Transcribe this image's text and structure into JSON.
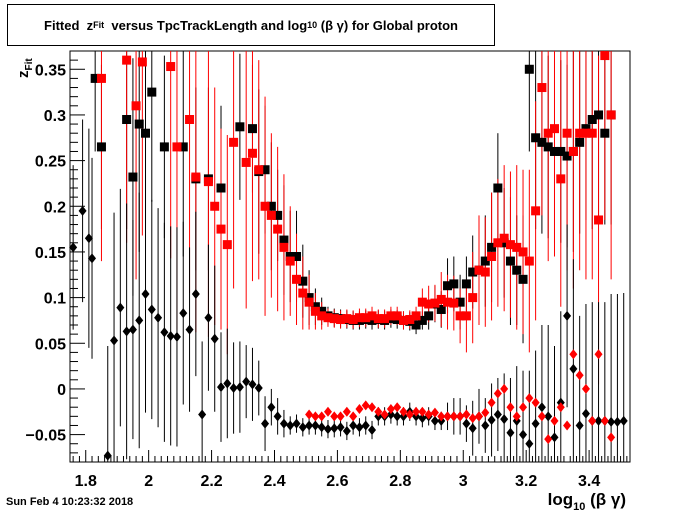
{
  "title": {
    "pre": "Fitted  z",
    "sub1": "Fit",
    "mid": "  versus TpcTrackLength and log",
    "sub2": "10",
    "post": " (β γ) for Global proton"
  },
  "timestamp": "Sun Feb  4 10:23:32 2018",
  "chart_data": {
    "type": "scatter",
    "title": "Fitted z_Fit versus TpcTrackLength and log10 (β γ) for Global proton",
    "xlabel": {
      "main": "log",
      "sub": "10",
      "post": " (β γ)"
    },
    "ylabel": {
      "main": "z",
      "sub": "Fit"
    },
    "xlim": [
      1.75,
      3.53
    ],
    "ylim": [
      -0.08,
      0.37
    ],
    "xticks": [
      1.8,
      2,
      2.2,
      2.4,
      2.6,
      2.8,
      3,
      3.2,
      3.4
    ],
    "xtick_labels": [
      "1.8",
      "2",
      "2.2",
      "2.4",
      "2.6",
      "2.8",
      "3",
      "3.2",
      "3.4"
    ],
    "yticks": [
      -0.05,
      0,
      0.05,
      0.1,
      0.15,
      0.2,
      0.25,
      0.3,
      0.35
    ],
    "ytick_labels": [
      "−0.05",
      "0",
      "0.05",
      "0.1",
      "0.15",
      "0.2",
      "0.25",
      "0.3",
      "0.35"
    ],
    "grid": false,
    "legend": "none",
    "series": [
      {
        "marker": "square",
        "color": "#000000",
        "x": [
          1.83,
          1.85,
          1.93,
          1.95,
          1.97,
          1.99,
          2.01,
          2.05,
          2.11,
          2.15,
          2.19,
          2.23,
          2.29,
          2.33,
          2.35,
          2.37,
          2.39,
          2.41,
          2.43,
          2.45,
          2.47,
          2.49,
          2.51,
          2.53,
          2.55,
          2.57,
          2.59,
          2.61,
          2.63,
          2.65,
          2.67,
          2.69,
          2.71,
          2.73,
          2.75,
          2.77,
          2.79,
          2.81,
          2.83,
          2.85,
          2.87,
          2.89,
          2.91,
          2.93,
          2.95,
          2.97,
          2.99,
          3.01,
          3.03,
          3.05,
          3.07,
          3.09,
          3.11,
          3.13,
          3.15,
          3.17,
          3.19,
          3.21,
          3.23,
          3.25,
          3.27,
          3.29,
          3.31,
          3.33,
          3.35,
          3.37,
          3.39,
          3.41,
          3.43,
          3.45,
          3.47
        ],
        "y": [
          0.34,
          0.265,
          0.295,
          0.232,
          0.29,
          0.28,
          0.325,
          0.265,
          0.265,
          0.23,
          0.23,
          0.22,
          0.287,
          0.285,
          0.238,
          0.24,
          0.2,
          0.19,
          0.163,
          0.145,
          0.145,
          0.118,
          0.1,
          0.09,
          0.085,
          0.08,
          0.078,
          0.077,
          0.076,
          0.075,
          0.075,
          0.076,
          0.075,
          0.076,
          0.075,
          0.077,
          0.076,
          0.075,
          0.074,
          0.07,
          0.075,
          0.08,
          0.093,
          0.087,
          0.113,
          0.115,
          0.095,
          0.115,
          0.128,
          0.13,
          0.14,
          0.155,
          0.22,
          0.16,
          0.14,
          0.13,
          0.12,
          0.35,
          0.275,
          0.27,
          0.265,
          0.26,
          0.26,
          0.255,
          0.26,
          0.27,
          0.285,
          0.295,
          0.3,
          0.28,
          0.3
        ],
        "err": [
          0.08,
          0.09,
          0.12,
          0.13,
          0.14,
          0.1,
          0.12,
          0.1,
          0.12,
          0.1,
          0.1,
          0.09,
          0.08,
          0.07,
          0.09,
          0.07,
          0.07,
          0.05,
          0.06,
          0.05,
          0.05,
          0.04,
          0.03,
          0.02,
          0.015,
          0.01,
          0.01,
          0.01,
          0.01,
          0.01,
          0.01,
          0.01,
          0.01,
          0.01,
          0.01,
          0.01,
          0.01,
          0.01,
          0.01,
          0.01,
          0.01,
          0.015,
          0.02,
          0.02,
          0.03,
          0.03,
          0.03,
          0.03,
          0.04,
          0.04,
          0.05,
          0.06,
          0.06,
          0.06,
          0.07,
          0.06,
          0.07,
          0.09,
          0.1,
          0.1,
          0.1,
          0.1,
          0.1,
          0.1,
          0.11,
          0.1,
          0.1,
          0.12,
          0.12,
          0.1,
          0.12
        ]
      },
      {
        "marker": "square",
        "color": "#ff0000",
        "x": [
          1.85,
          1.93,
          1.96,
          1.98,
          2.07,
          2.09,
          2.13,
          2.15,
          2.19,
          2.21,
          2.23,
          2.25,
          2.27,
          2.31,
          2.33,
          2.35,
          2.37,
          2.39,
          2.41,
          2.43,
          2.45,
          2.47,
          2.49,
          2.51,
          2.53,
          2.55,
          2.57,
          2.59,
          2.61,
          2.63,
          2.65,
          2.67,
          2.69,
          2.71,
          2.73,
          2.75,
          2.77,
          2.79,
          2.81,
          2.83,
          2.85,
          2.87,
          2.89,
          2.91,
          2.93,
          2.95,
          2.97,
          2.99,
          3.01,
          3.03,
          3.05,
          3.07,
          3.09,
          3.11,
          3.13,
          3.15,
          3.17,
          3.19,
          3.21,
          3.23,
          3.25,
          3.27,
          3.29,
          3.31,
          3.33,
          3.35,
          3.37,
          3.39,
          3.41,
          3.43,
          3.45,
          3.47
        ],
        "y": [
          0.34,
          0.36,
          0.31,
          0.358,
          0.353,
          0.265,
          0.295,
          0.232,
          0.227,
          0.2,
          0.175,
          0.158,
          0.27,
          0.248,
          0.258,
          0.24,
          0.2,
          0.19,
          0.175,
          0.155,
          0.14,
          0.12,
          0.105,
          0.095,
          0.085,
          0.08,
          0.078,
          0.077,
          0.076,
          0.077,
          0.076,
          0.078,
          0.078,
          0.08,
          0.077,
          0.077,
          0.08,
          0.08,
          0.075,
          0.076,
          0.08,
          0.095,
          0.093,
          0.094,
          0.098,
          0.095,
          0.094,
          0.08,
          0.08,
          0.1,
          0.13,
          0.128,
          0.145,
          0.16,
          0.165,
          0.158,
          0.155,
          0.15,
          0.14,
          0.195,
          0.33,
          0.28,
          0.285,
          0.23,
          0.28,
          0.26,
          0.28,
          0.28,
          0.28,
          0.185,
          0.365,
          0.3
        ],
        "err": [
          0.2,
          0.2,
          0.19,
          0.19,
          0.21,
          0.2,
          0.19,
          0.17,
          0.17,
          0.13,
          0.11,
          0.12,
          0.16,
          0.16,
          0.14,
          0.12,
          0.12,
          0.09,
          0.09,
          0.08,
          0.06,
          0.05,
          0.04,
          0.03,
          0.02,
          0.015,
          0.01,
          0.01,
          0.01,
          0.01,
          0.01,
          0.01,
          0.01,
          0.01,
          0.01,
          0.01,
          0.01,
          0.01,
          0.01,
          0.01,
          0.01,
          0.015,
          0.02,
          0.02,
          0.03,
          0.03,
          0.03,
          0.03,
          0.04,
          0.05,
          0.06,
          0.06,
          0.07,
          0.07,
          0.08,
          0.08,
          0.09,
          0.09,
          0.1,
          0.12,
          0.14,
          0.14,
          0.14,
          0.14,
          0.15,
          0.15,
          0.15,
          0.16,
          0.16,
          0.18,
          0.18,
          0.18
        ]
      },
      {
        "marker": "diamond",
        "color": "#000000",
        "x": [
          1.76,
          1.79,
          1.81,
          1.82,
          1.87,
          1.89,
          1.91,
          1.93,
          1.95,
          1.97,
          1.99,
          2.01,
          2.03,
          2.05,
          2.07,
          2.09,
          2.11,
          2.13,
          2.15,
          2.17,
          2.19,
          2.21,
          2.23,
          2.25,
          2.27,
          2.29,
          2.31,
          2.33,
          2.35,
          2.37,
          2.39,
          2.41,
          2.43,
          2.45,
          2.47,
          2.49,
          2.51,
          2.53,
          2.55,
          2.57,
          2.59,
          2.61,
          2.63,
          2.65,
          2.67,
          2.69,
          2.71,
          2.73,
          2.75,
          2.77,
          2.79,
          2.81,
          2.83,
          2.85,
          2.87,
          2.89,
          2.91,
          2.93,
          2.95,
          2.97,
          2.99,
          3.01,
          3.03,
          3.05,
          3.07,
          3.09,
          3.11,
          3.13,
          3.15,
          3.17,
          3.19,
          3.21,
          3.23,
          3.25,
          3.27,
          3.29,
          3.31,
          3.33,
          3.35,
          3.37,
          3.39,
          3.41,
          3.43,
          3.45,
          3.47,
          3.49,
          3.51
        ],
        "y": [
          0.155,
          0.195,
          0.165,
          0.143,
          -0.073,
          0.053,
          0.089,
          0.063,
          0.065,
          0.075,
          0.104,
          0.087,
          0.078,
          0.062,
          0.058,
          0.057,
          0.083,
          0.065,
          0.104,
          -0.028,
          0.078,
          0.055,
          0.002,
          0.006,
          0.001,
          0.002,
          0.008,
          0.005,
          0.001,
          -0.038,
          -0.02,
          -0.03,
          -0.038,
          -0.04,
          -0.038,
          -0.042,
          -0.04,
          -0.04,
          -0.042,
          -0.044,
          -0.043,
          -0.042,
          -0.046,
          -0.04,
          -0.042,
          -0.04,
          -0.045,
          -0.03,
          -0.03,
          -0.028,
          -0.03,
          -0.03,
          -0.025,
          -0.03,
          -0.032,
          -0.03,
          -0.035,
          -0.035,
          -0.03,
          -0.03,
          -0.03,
          -0.038,
          -0.043,
          -0.03,
          -0.04,
          -0.034,
          -0.028,
          -0.033,
          -0.048,
          -0.035,
          -0.05,
          -0.06,
          -0.038,
          -0.02,
          -0.03,
          -0.053,
          -0.015,
          0.08,
          0.022,
          -0.04,
          -0.027,
          -0.035,
          -0.035,
          -0.035,
          -0.036,
          -0.036,
          -0.035
        ],
        "err": [
          0.09,
          0.1,
          0.12,
          0.11,
          0.12,
          0.14,
          0.13,
          0.14,
          0.12,
          0.14,
          0.13,
          0.12,
          0.12,
          0.12,
          0.12,
          0.12,
          0.1,
          0.09,
          0.09,
          0.08,
          0.08,
          0.08,
          0.06,
          0.06,
          0.05,
          0.05,
          0.04,
          0.04,
          0.03,
          0.03,
          0.02,
          0.02,
          0.015,
          0.01,
          0.01,
          0.01,
          0.01,
          0.01,
          0.01,
          0.01,
          0.01,
          0.01,
          0.01,
          0.01,
          0.01,
          0.01,
          0.01,
          0.01,
          0.01,
          0.01,
          0.01,
          0.01,
          0.01,
          0.01,
          0.01,
          0.01,
          0.01,
          0.01,
          0.015,
          0.02,
          0.02,
          0.02,
          0.03,
          0.03,
          0.03,
          0.04,
          0.04,
          0.05,
          0.06,
          0.06,
          0.07,
          0.08,
          0.08,
          0.09,
          0.1,
          0.1,
          0.1,
          0.1,
          0.12,
          0.12,
          0.12,
          0.13,
          0.13,
          0.13,
          0.14,
          0.14,
          0.14
        ]
      },
      {
        "marker": "diamond",
        "color": "#ff0000",
        "x": [
          2.51,
          2.53,
          2.55,
          2.57,
          2.59,
          2.61,
          2.63,
          2.65,
          2.67,
          2.69,
          2.71,
          2.73,
          2.75,
          2.77,
          2.79,
          2.81,
          2.83,
          2.85,
          2.87,
          2.89,
          2.91,
          2.93,
          2.95,
          2.97,
          2.99,
          3.01,
          3.03,
          3.05,
          3.07,
          3.09,
          3.11,
          3.13,
          3.15,
          3.17,
          3.19,
          3.21,
          3.23,
          3.25,
          3.27,
          3.29,
          3.31,
          3.33,
          3.35,
          3.37,
          3.39,
          3.41,
          3.43,
          3.45,
          3.47
        ],
        "y": [
          -0.028,
          -0.03,
          -0.03,
          -0.025,
          -0.03,
          -0.03,
          -0.025,
          -0.03,
          -0.022,
          -0.018,
          -0.02,
          -0.025,
          -0.028,
          -0.022,
          -0.02,
          -0.025,
          -0.028,
          -0.025,
          -0.025,
          -0.028,
          -0.026,
          -0.03,
          -0.03,
          -0.03,
          -0.03,
          -0.028,
          -0.032,
          -0.03,
          -0.026,
          -0.015,
          -0.005,
          0.0,
          -0.02,
          -0.03,
          -0.02,
          -0.01,
          -0.015,
          -0.03,
          -0.055,
          -0.035,
          -0.02,
          -0.04,
          0.038,
          0.015,
          0.0,
          -0.035,
          0.038,
          -0.035,
          -0.053
        ]
      }
    ]
  }
}
